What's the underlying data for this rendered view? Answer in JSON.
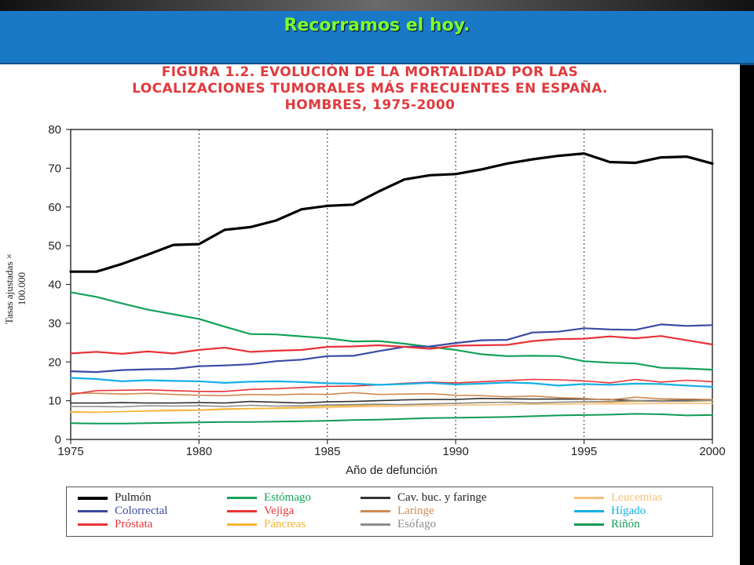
{
  "slide": {
    "title": "Recorramos el hoy."
  },
  "figure": {
    "title_lines": [
      "FIGURA 1.2.    EVOLUCIÓN DE LA MORTALIDAD POR LAS",
      "LOCALIZACIONES TUMORALES MÁS FRECUENTES EN ESPAÑA.",
      "HOMBRES, 1975-2000"
    ],
    "title_color": "#e03a3e"
  },
  "chart_data": {
    "type": "line",
    "xlabel": "Año de defunción",
    "ylabel": "Tasas ajustadas × 100.000",
    "xlim": [
      1975,
      2000
    ],
    "ylim": [
      0,
      80
    ],
    "x_ticks": [
      1975,
      1980,
      1985,
      1990,
      1995,
      2000
    ],
    "y_ticks": [
      0,
      10,
      20,
      30,
      40,
      50,
      60,
      70,
      80
    ],
    "grid": {
      "vertical": true,
      "horizontal": false,
      "style": "dotted"
    },
    "legend_position": "bottom",
    "x": [
      1975,
      1976,
      1977,
      1978,
      1979,
      1980,
      1981,
      1982,
      1983,
      1984,
      1985,
      1986,
      1987,
      1988,
      1989,
      1990,
      1991,
      1992,
      1993,
      1994,
      1995,
      1996,
      1997,
      1998,
      1999,
      2000
    ],
    "series": [
      {
        "name": "Pulmón",
        "color": "#000000",
        "width": 3.2,
        "values": [
          43.3,
          43.3,
          45.3,
          47.7,
          50.2,
          50.4,
          54.1,
          54.8,
          56.5,
          59.4,
          60.3,
          60.6,
          64.0,
          67.1,
          68.2,
          68.5,
          69.7,
          71.2,
          72.3,
          73.2,
          73.8,
          71.6,
          71.4,
          72.8,
          73.0,
          71.2
        ]
      },
      {
        "name": "Estómago",
        "color": "#14a25a",
        "width": 2.2,
        "values": [
          38.0,
          36.8,
          35.1,
          33.5,
          32.3,
          31.1,
          29.1,
          27.2,
          27.1,
          26.6,
          26.1,
          25.3,
          25.4,
          24.7,
          23.9,
          23.1,
          22.0,
          21.5,
          21.6,
          21.5,
          20.2,
          19.8,
          19.6,
          18.5,
          18.3,
          18.0
        ]
      },
      {
        "name": "Cav. buc. y faringe",
        "color": "#333333",
        "width": 1.6,
        "values": [
          9.4,
          9.4,
          9.5,
          9.4,
          9.4,
          9.5,
          9.4,
          9.8,
          9.6,
          9.4,
          9.7,
          9.8,
          10.0,
          10.2,
          10.3,
          10.3,
          10.6,
          10.5,
          10.4,
          10.4,
          10.4,
          10.3,
          10.0,
          10.0,
          10.1,
          10.0
        ]
      },
      {
        "name": "Leucemias",
        "color": "#f4c07c",
        "width": 1.6,
        "values": [
          7.0,
          7.0,
          7.2,
          7.3,
          7.4,
          7.5,
          7.7,
          7.9,
          8.0,
          8.1,
          8.2,
          8.4,
          8.5,
          8.6,
          8.7,
          8.8,
          8.9,
          9.0,
          9.1,
          9.1,
          9.2,
          9.2,
          9.2,
          9.3,
          9.3,
          9.3
        ]
      },
      {
        "name": "Colorrectal",
        "color": "#3b4aa3",
        "width": 2.2,
        "values": [
          17.6,
          17.4,
          17.9,
          18.1,
          18.2,
          18.9,
          19.1,
          19.4,
          20.2,
          20.6,
          21.5,
          21.6,
          22.8,
          23.9,
          24.0,
          24.9,
          25.6,
          25.7,
          27.6,
          27.8,
          28.7,
          28.4,
          28.3,
          29.7,
          29.3,
          29.5
        ]
      },
      {
        "name": "Vejiga",
        "color": "#e8333a",
        "width": 2.2,
        "values": [
          22.2,
          22.6,
          22.1,
          22.7,
          22.2,
          23.1,
          23.7,
          22.6,
          22.9,
          23.1,
          23.9,
          24.0,
          24.3,
          23.9,
          23.4,
          24.2,
          24.3,
          24.4,
          25.4,
          25.9,
          26.0,
          26.6,
          26.1,
          26.7,
          25.6,
          24.5
        ]
      },
      {
        "name": "Laringe",
        "color": "#d08a52",
        "width": 1.6,
        "values": [
          12.0,
          11.9,
          11.7,
          11.9,
          11.6,
          11.4,
          11.3,
          11.6,
          11.5,
          11.7,
          11.6,
          12.1,
          11.6,
          11.7,
          11.8,
          11.4,
          11.3,
          11.0,
          11.2,
          10.8,
          10.6,
          10.2,
          10.9,
          10.5,
          10.4,
          10.3
        ]
      },
      {
        "name": "Hígado",
        "color": "#16b0e6",
        "width": 2.2,
        "values": [
          15.9,
          15.6,
          15.0,
          15.3,
          15.1,
          15.0,
          14.6,
          14.9,
          15.0,
          14.8,
          14.5,
          14.4,
          14.1,
          14.3,
          14.6,
          14.2,
          14.4,
          14.7,
          14.5,
          13.9,
          14.3,
          14.1,
          14.4,
          14.3,
          13.9,
          13.6
        ]
      },
      {
        "name": "Próstata",
        "color": "#e8333a",
        "width": 1.6,
        "values": [
          11.6,
          12.6,
          12.7,
          12.8,
          12.6,
          12.4,
          12.4,
          12.9,
          13.1,
          13.4,
          13.7,
          13.8,
          14.1,
          14.5,
          14.8,
          14.6,
          14.9,
          15.2,
          15.5,
          15.4,
          15.1,
          14.6,
          15.5,
          14.8,
          15.3,
          14.9
        ]
      },
      {
        "name": "Páncreas",
        "color": "#f5b52d",
        "width": 1.6,
        "values": [
          7.2,
          7.0,
          7.2,
          7.4,
          7.6,
          7.6,
          7.9,
          8.0,
          8.1,
          8.3,
          8.6,
          8.7,
          8.9,
          9.0,
          9.1,
          9.3,
          9.5,
          9.6,
          9.4,
          9.6,
          9.7,
          9.6,
          9.8,
          9.9,
          9.8,
          10.0
        ]
      },
      {
        "name": "Esófago",
        "color": "#8c8c8c",
        "width": 1.6,
        "values": [
          8.5,
          8.5,
          8.4,
          8.7,
          8.6,
          8.7,
          8.5,
          8.8,
          8.6,
          8.7,
          8.9,
          9.0,
          9.1,
          9.0,
          9.2,
          9.3,
          9.5,
          9.6,
          9.4,
          9.6,
          9.7,
          9.8,
          10.0,
          9.8,
          9.9,
          10.1
        ]
      },
      {
        "name": "Riñón",
        "color": "#0f9b54",
        "width": 2.0,
        "values": [
          4.2,
          4.1,
          4.1,
          4.2,
          4.3,
          4.4,
          4.5,
          4.5,
          4.6,
          4.7,
          4.8,
          5.0,
          5.1,
          5.3,
          5.5,
          5.6,
          5.7,
          5.8,
          6.0,
          6.2,
          6.3,
          6.4,
          6.6,
          6.5,
          6.2,
          6.3
        ]
      }
    ]
  }
}
